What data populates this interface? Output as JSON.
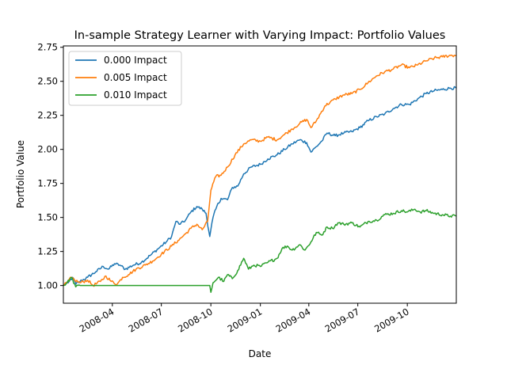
{
  "chart_data": {
    "type": "line",
    "title": "In-sample Strategy Learner with Varying Impact: Portfolio Values",
    "xlabel": "Date",
    "ylabel": "Portfolio Value",
    "xlim": [
      "2008-01-01",
      "2009-12-31"
    ],
    "ylim": [
      0.87,
      2.76
    ],
    "x_ticks": [
      "2008-04",
      "2008-07",
      "2008-10",
      "2009-01",
      "2009-04",
      "2009-07",
      "2009-10"
    ],
    "y_ticks": [
      "1.00",
      "1.25",
      "1.50",
      "1.75",
      "2.00",
      "2.25",
      "2.50",
      "2.75"
    ],
    "legend_position": "upper-left",
    "grid": false,
    "series": [
      {
        "name": "0.000 Impact",
        "color": "#1f77b4",
        "points": [
          [
            "2008-01-01",
            1.0
          ],
          [
            "2008-01-10",
            1.02
          ],
          [
            "2008-01-18",
            1.06
          ],
          [
            "2008-01-24",
            1.01
          ],
          [
            "2008-02-01",
            1.03
          ],
          [
            "2008-02-15",
            1.06
          ],
          [
            "2008-03-01",
            1.1
          ],
          [
            "2008-03-15",
            1.14
          ],
          [
            "2008-03-25",
            1.12
          ],
          [
            "2008-04-05",
            1.16
          ],
          [
            "2008-04-15",
            1.15
          ],
          [
            "2008-04-25",
            1.12
          ],
          [
            "2008-05-10",
            1.15
          ],
          [
            "2008-05-25",
            1.17
          ],
          [
            "2008-06-10",
            1.22
          ],
          [
            "2008-06-25",
            1.27
          ],
          [
            "2008-07-10",
            1.32
          ],
          [
            "2008-07-20",
            1.36
          ],
          [
            "2008-07-28",
            1.47
          ],
          [
            "2008-08-05",
            1.45
          ],
          [
            "2008-08-15",
            1.48
          ],
          [
            "2008-08-25",
            1.54
          ],
          [
            "2008-09-05",
            1.58
          ],
          [
            "2008-09-15",
            1.56
          ],
          [
            "2008-09-22",
            1.53
          ],
          [
            "2008-09-29",
            1.36
          ],
          [
            "2008-10-05",
            1.5
          ],
          [
            "2008-10-12",
            1.58
          ],
          [
            "2008-10-20",
            1.64
          ],
          [
            "2008-11-01",
            1.63
          ],
          [
            "2008-11-10",
            1.72
          ],
          [
            "2008-11-20",
            1.73
          ],
          [
            "2008-12-01",
            1.82
          ],
          [
            "2008-12-15",
            1.87
          ],
          [
            "2009-01-01",
            1.89
          ],
          [
            "2009-01-15",
            1.93
          ],
          [
            "2009-02-01",
            1.96
          ],
          [
            "2009-02-15",
            2.0
          ],
          [
            "2009-03-01",
            2.04
          ],
          [
            "2009-03-15",
            2.07
          ],
          [
            "2009-03-28",
            2.05
          ],
          [
            "2009-04-05",
            1.98
          ],
          [
            "2009-04-15",
            2.02
          ],
          [
            "2009-04-25",
            2.06
          ],
          [
            "2009-05-05",
            2.12
          ],
          [
            "2009-05-20",
            2.1
          ],
          [
            "2009-06-05",
            2.12
          ],
          [
            "2009-06-20",
            2.13
          ],
          [
            "2009-07-05",
            2.16
          ],
          [
            "2009-07-20",
            2.21
          ],
          [
            "2009-08-05",
            2.24
          ],
          [
            "2009-08-20",
            2.26
          ],
          [
            "2009-09-05",
            2.3
          ],
          [
            "2009-09-20",
            2.33
          ],
          [
            "2009-10-05",
            2.33
          ],
          [
            "2009-10-20",
            2.37
          ],
          [
            "2009-11-05",
            2.41
          ],
          [
            "2009-11-20",
            2.43
          ],
          [
            "2009-12-05",
            2.44
          ],
          [
            "2009-12-20",
            2.45
          ],
          [
            "2009-12-31",
            2.45
          ]
        ]
      },
      {
        "name": "0.005 Impact",
        "color": "#ff7f0e",
        "points": [
          [
            "2008-01-01",
            1.0
          ],
          [
            "2008-01-08",
            1.02
          ],
          [
            "2008-01-16",
            1.06
          ],
          [
            "2008-01-22",
            1.04
          ],
          [
            "2008-02-01",
            1.02
          ],
          [
            "2008-02-15",
            1.04
          ],
          [
            "2008-02-25",
            1.0
          ],
          [
            "2008-03-10",
            1.03
          ],
          [
            "2008-03-20",
            1.07
          ],
          [
            "2008-03-30",
            1.03
          ],
          [
            "2008-04-10",
            1.01
          ],
          [
            "2008-04-20",
            1.06
          ],
          [
            "2008-05-01",
            1.08
          ],
          [
            "2008-05-15",
            1.12
          ],
          [
            "2008-06-01",
            1.15
          ],
          [
            "2008-06-15",
            1.18
          ],
          [
            "2008-07-01",
            1.23
          ],
          [
            "2008-07-20",
            1.29
          ],
          [
            "2008-08-01",
            1.33
          ],
          [
            "2008-08-15",
            1.38
          ],
          [
            "2008-08-25",
            1.42
          ],
          [
            "2008-09-05",
            1.45
          ],
          [
            "2008-09-15",
            1.41
          ],
          [
            "2008-09-25",
            1.47
          ],
          [
            "2008-10-01",
            1.7
          ],
          [
            "2008-10-10",
            1.8
          ],
          [
            "2008-10-20",
            1.81
          ],
          [
            "2008-11-01",
            1.87
          ],
          [
            "2008-11-15",
            1.96
          ],
          [
            "2008-12-01",
            2.04
          ],
          [
            "2008-12-15",
            2.07
          ],
          [
            "2009-01-01",
            2.06
          ],
          [
            "2009-01-15",
            2.09
          ],
          [
            "2009-02-01",
            2.07
          ],
          [
            "2009-02-15",
            2.11
          ],
          [
            "2009-03-01",
            2.15
          ],
          [
            "2009-03-15",
            2.19
          ],
          [
            "2009-03-28",
            2.22
          ],
          [
            "2009-04-05",
            2.16
          ],
          [
            "2009-04-15",
            2.21
          ],
          [
            "2009-05-01",
            2.32
          ],
          [
            "2009-05-20",
            2.37
          ],
          [
            "2009-06-05",
            2.4
          ],
          [
            "2009-06-20",
            2.41
          ],
          [
            "2009-07-05",
            2.44
          ],
          [
            "2009-07-20",
            2.49
          ],
          [
            "2009-08-05",
            2.54
          ],
          [
            "2009-08-20",
            2.57
          ],
          [
            "2009-09-05",
            2.59
          ],
          [
            "2009-09-20",
            2.62
          ],
          [
            "2009-10-05",
            2.6
          ],
          [
            "2009-10-20",
            2.62
          ],
          [
            "2009-11-05",
            2.65
          ],
          [
            "2009-11-20",
            2.67
          ],
          [
            "2009-12-05",
            2.68
          ],
          [
            "2009-12-20",
            2.69
          ],
          [
            "2009-12-31",
            2.69
          ]
        ]
      },
      {
        "name": "0.010 Impact",
        "color": "#2ca02c",
        "points": [
          [
            "2008-01-01",
            1.0
          ],
          [
            "2008-01-08",
            1.02
          ],
          [
            "2008-01-16",
            1.06
          ],
          [
            "2008-01-24",
            0.99
          ],
          [
            "2008-02-01",
            1.0
          ],
          [
            "2008-09-29",
            1.0
          ],
          [
            "2008-10-01",
            0.95
          ],
          [
            "2008-10-05",
            1.02
          ],
          [
            "2008-10-15",
            1.06
          ],
          [
            "2008-10-25",
            1.03
          ],
          [
            "2008-11-01",
            1.08
          ],
          [
            "2008-11-10",
            1.05
          ],
          [
            "2008-11-20",
            1.11
          ],
          [
            "2008-12-01",
            1.2
          ],
          [
            "2008-12-10",
            1.12
          ],
          [
            "2008-12-20",
            1.15
          ],
          [
            "2009-01-01",
            1.14
          ],
          [
            "2009-01-15",
            1.17
          ],
          [
            "2009-02-01",
            1.2
          ],
          [
            "2009-02-10",
            1.27
          ],
          [
            "2009-02-20",
            1.29
          ],
          [
            "2009-03-01",
            1.26
          ],
          [
            "2009-03-15",
            1.3
          ],
          [
            "2009-03-25",
            1.26
          ],
          [
            "2009-04-05",
            1.32
          ],
          [
            "2009-04-15",
            1.39
          ],
          [
            "2009-04-25",
            1.37
          ],
          [
            "2009-05-05",
            1.43
          ],
          [
            "2009-05-15",
            1.42
          ],
          [
            "2009-05-25",
            1.46
          ],
          [
            "2009-06-05",
            1.45
          ],
          [
            "2009-06-20",
            1.46
          ],
          [
            "2009-07-05",
            1.43
          ],
          [
            "2009-07-20",
            1.47
          ],
          [
            "2009-08-05",
            1.48
          ],
          [
            "2009-08-20",
            1.52
          ],
          [
            "2009-09-05",
            1.53
          ],
          [
            "2009-09-20",
            1.55
          ],
          [
            "2009-10-01",
            1.54
          ],
          [
            "2009-10-15",
            1.56
          ],
          [
            "2009-10-25",
            1.54
          ],
          [
            "2009-11-05",
            1.55
          ],
          [
            "2009-11-20",
            1.53
          ],
          [
            "2009-12-05",
            1.52
          ],
          [
            "2009-12-20",
            1.51
          ],
          [
            "2009-12-31",
            1.51
          ]
        ]
      }
    ]
  }
}
